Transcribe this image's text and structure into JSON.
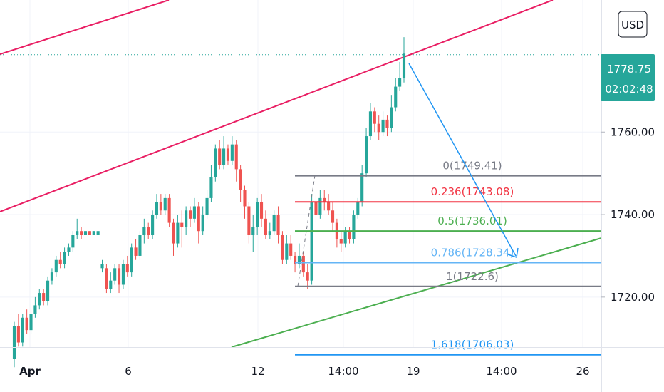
{
  "currency": {
    "label": "USD",
    "border": "#131722"
  },
  "price_badge": {
    "price": "1778.75",
    "countdown": "02:02:48",
    "color": "#26a69a",
    "text_color": "#ffffff"
  },
  "chart_data": {
    "type": "candlestick",
    "title": "",
    "xlabel": "",
    "ylabel": "",
    "ylim": [
      1697,
      1792
    ],
    "x_tick_labels": [
      "Apr",
      "6",
      "12",
      "14:00",
      "19",
      "14:00",
      "26"
    ],
    "y_tick_labels": [
      "1760.00",
      "1740.00",
      "1720.00"
    ],
    "y_ticks": [
      1760,
      1740,
      1720
    ],
    "last_price": 1778.75,
    "colors": {
      "up": "#26a69a",
      "down": "#ef5350"
    },
    "candles": [
      [
        1705,
        1713,
        1703,
        1714
      ],
      [
        1713,
        1709,
        1708,
        1716
      ],
      [
        1709,
        1715,
        1708,
        1716
      ],
      [
        1715,
        1712,
        1711,
        1717
      ],
      [
        1712,
        1716,
        1711,
        1717
      ],
      [
        1716,
        1718,
        1715,
        1720
      ],
      [
        1718,
        1721,
        1717,
        1722
      ],
      [
        1721,
        1719,
        1718,
        1722
      ],
      [
        1719,
        1724,
        1718,
        1725
      ],
      [
        1724,
        1726,
        1723,
        1727
      ],
      [
        1726,
        1729,
        1725,
        1730
      ],
      [
        1729,
        1728,
        1727,
        1731
      ],
      [
        1728,
        1731,
        1727,
        1732
      ],
      [
        1731,
        1732,
        1730,
        1733
      ],
      [
        1732,
        1735,
        1731,
        1736
      ],
      [
        1735,
        1736,
        1734,
        1739
      ],
      [
        1736,
        1735,
        1734,
        1737
      ],
      [
        1735,
        1736,
        1735,
        1736
      ],
      [
        1736,
        1735,
        1735,
        1736
      ],
      [
        1735,
        1736,
        1735,
        1736
      ],
      [
        1735,
        1736,
        1735,
        1736
      ],
      [
        1727,
        1728,
        1726,
        1729
      ],
      [
        1727,
        1722,
        1721,
        1728
      ],
      [
        1722,
        1724,
        1721,
        1726
      ],
      [
        1724,
        1727,
        1723,
        1728
      ],
      [
        1727,
        1723,
        1721,
        1728
      ],
      [
        1723,
        1728,
        1722,
        1729
      ],
      [
        1728,
        1726,
        1725,
        1730
      ],
      [
        1726,
        1732,
        1725,
        1733
      ],
      [
        1732,
        1730,
        1729,
        1734
      ],
      [
        1730,
        1735,
        1729,
        1736
      ],
      [
        1735,
        1737,
        1733,
        1739
      ],
      [
        1737,
        1735,
        1734,
        1738
      ],
      [
        1735,
        1740,
        1734,
        1741
      ],
      [
        1740,
        1743,
        1739,
        1745
      ],
      [
        1743,
        1741,
        1740,
        1745
      ],
      [
        1741,
        1744,
        1740,
        1745
      ],
      [
        1744,
        1738,
        1737,
        1745
      ],
      [
        1738,
        1733,
        1730,
        1739
      ],
      [
        1733,
        1738,
        1732,
        1740
      ],
      [
        1738,
        1737,
        1732,
        1741
      ],
      [
        1737,
        1741,
        1735,
        1742
      ],
      [
        1741,
        1739,
        1737,
        1742
      ],
      [
        1739,
        1742,
        1738,
        1744
      ],
      [
        1742,
        1736,
        1733,
        1743
      ],
      [
        1736,
        1740,
        1735,
        1742
      ],
      [
        1740,
        1744,
        1739,
        1746
      ],
      [
        1744,
        1749,
        1743,
        1752
      ],
      [
        1749,
        1756,
        1748,
        1757
      ],
      [
        1756,
        1752,
        1751,
        1758
      ],
      [
        1752,
        1756,
        1751,
        1759
      ],
      [
        1756,
        1753,
        1752,
        1757
      ],
      [
        1753,
        1757,
        1752,
        1759
      ],
      [
        1757,
        1751,
        1748,
        1758
      ],
      [
        1751,
        1746,
        1743,
        1752
      ],
      [
        1746,
        1742,
        1739,
        1747
      ],
      [
        1742,
        1735,
        1733,
        1743
      ],
      [
        1735,
        1737,
        1731,
        1740
      ],
      [
        1737,
        1743,
        1735,
        1744
      ],
      [
        1743,
        1739,
        1737,
        1745
      ],
      [
        1739,
        1735,
        1734,
        1741
      ],
      [
        1735,
        1736,
        1734,
        1738
      ],
      [
        1736,
        1740,
        1735,
        1741
      ],
      [
        1740,
        1735,
        1733,
        1742
      ],
      [
        1735,
        1729,
        1728,
        1736
      ],
      [
        1729,
        1733,
        1728,
        1735
      ],
      [
        1733,
        1730,
        1729,
        1735
      ],
      [
        1730,
        1728,
        1726,
        1731
      ],
      [
        1728,
        1730,
        1727,
        1733
      ],
      [
        1730,
        1726,
        1725,
        1731
      ],
      [
        1726,
        1724,
        1722,
        1728
      ],
      [
        1724,
        1743,
        1723,
        1745
      ],
      [
        1743,
        1740,
        1738,
        1745
      ],
      [
        1740,
        1744,
        1739,
        1746
      ],
      [
        1744,
        1743,
        1741,
        1746
      ],
      [
        1743,
        1741,
        1740,
        1745
      ],
      [
        1741,
        1738,
        1736,
        1743
      ],
      [
        1738,
        1734,
        1732,
        1739
      ],
      [
        1734,
        1733,
        1731,
        1736
      ],
      [
        1733,
        1736,
        1732,
        1737
      ],
      [
        1736,
        1734,
        1733,
        1737
      ],
      [
        1734,
        1740,
        1733,
        1741
      ],
      [
        1740,
        1743,
        1739,
        1744
      ],
      [
        1743,
        1750,
        1742,
        1752
      ],
      [
        1750,
        1759,
        1749,
        1761
      ],
      [
        1759,
        1765,
        1758,
        1767
      ],
      [
        1765,
        1762,
        1760,
        1766
      ],
      [
        1762,
        1760,
        1758,
        1764
      ],
      [
        1760,
        1763,
        1759,
        1765
      ],
      [
        1763,
        1761,
        1759,
        1764
      ],
      [
        1761,
        1766,
        1760,
        1769
      ],
      [
        1766,
        1771,
        1765,
        1773
      ],
      [
        1771,
        1773,
        1770,
        1777
      ],
      [
        1773,
        1779,
        1772,
        1783
      ]
    ],
    "fibonacci": {
      "levels": [
        {
          "label": "0(1749.41)",
          "value": 1749.41,
          "color": "#787b86"
        },
        {
          "label": "0.236(1743.08)",
          "value": 1743.08,
          "color": "#f23645"
        },
        {
          "label": "0.5(1736.01)",
          "value": 1736.01,
          "color": "#4caf50"
        },
        {
          "label": "0.786(1728.34)",
          "value": 1728.34,
          "color": "#64b5f6"
        },
        {
          "label": "1(1722.6)",
          "value": 1722.6,
          "color": "#787b86"
        },
        {
          "label": "1.618(1706.03)",
          "value": 1706.03,
          "color": "#2196f3"
        }
      ]
    },
    "channel_color": "#e91e63",
    "support_color": "#4caf50",
    "arrow_color": "#2196f3"
  }
}
